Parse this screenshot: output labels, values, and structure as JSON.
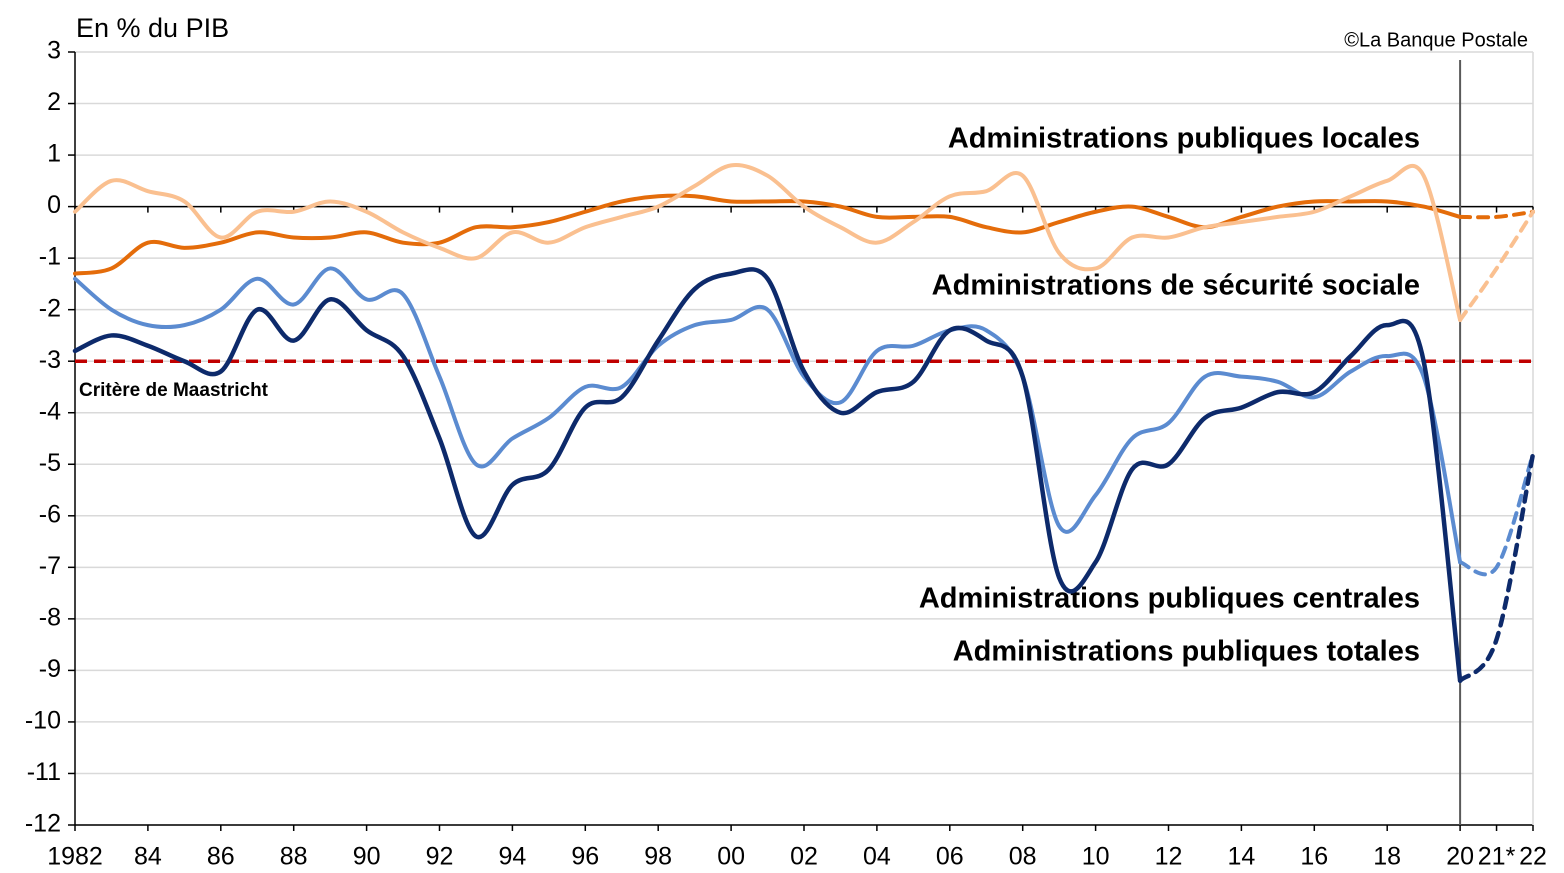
{
  "chart_data": {
    "type": "line",
    "y_label": "En % du PIB",
    "source": "©La Banque Postale",
    "x": [
      1982,
      1983,
      1984,
      1985,
      1986,
      1987,
      1988,
      1989,
      1990,
      1991,
      1992,
      1993,
      1994,
      1995,
      1996,
      1997,
      1998,
      1999,
      2000,
      2001,
      2002,
      2003,
      2004,
      2005,
      2006,
      2007,
      2008,
      2009,
      2010,
      2011,
      2012,
      2013,
      2014,
      2015,
      2016,
      2017,
      2018,
      2019,
      2020,
      2021,
      2022
    ],
    "forecast_from": 2020,
    "series": [
      {
        "name": "Administrations publiques locales",
        "color": "#e46c0a",
        "values": [
          -1.3,
          -1.2,
          -0.7,
          -0.8,
          -0.7,
          -0.5,
          -0.6,
          -0.6,
          -0.5,
          -0.7,
          -0.7,
          -0.4,
          -0.4,
          -0.3,
          -0.1,
          0.1,
          0.2,
          0.2,
          0.1,
          0.1,
          0.1,
          0.0,
          -0.2,
          -0.2,
          -0.2,
          -0.4,
          -0.5,
          -0.3,
          -0.1,
          0.0,
          -0.2,
          -0.4,
          -0.2,
          0.0,
          0.1,
          0.1,
          0.1,
          0.0,
          -0.2,
          -0.2,
          -0.1
        ]
      },
      {
        "name": "Administrations de sécurité sociale",
        "color": "#fac090",
        "values": [
          -0.1,
          0.5,
          0.3,
          0.1,
          -0.6,
          -0.1,
          -0.1,
          0.1,
          -0.1,
          -0.5,
          -0.8,
          -1.0,
          -0.5,
          -0.7,
          -0.4,
          -0.2,
          0.0,
          0.4,
          0.8,
          0.6,
          0.0,
          -0.4,
          -0.7,
          -0.3,
          0.2,
          0.3,
          0.6,
          -0.9,
          -1.2,
          -0.6,
          -0.6,
          -0.4,
          -0.3,
          -0.2,
          -0.1,
          0.2,
          0.5,
          0.6,
          -2.2,
          -1.2,
          -0.1
        ]
      },
      {
        "name": "Administrations publiques centrales",
        "color": "#5b8bd0",
        "values": [
          -1.4,
          -2.0,
          -2.3,
          -2.3,
          -2.0,
          -1.4,
          -1.9,
          -1.2,
          -1.8,
          -1.7,
          -3.3,
          -5.0,
          -4.5,
          -4.1,
          -3.5,
          -3.5,
          -2.7,
          -2.3,
          -2.2,
          -2.0,
          -3.3,
          -3.8,
          -2.8,
          -2.7,
          -2.4,
          -2.4,
          -3.3,
          -6.2,
          -5.6,
          -4.5,
          -4.2,
          -3.3,
          -3.3,
          -3.4,
          -3.7,
          -3.2,
          -2.9,
          -3.3,
          -6.9,
          -7.0,
          -4.8
        ]
      },
      {
        "name": "Administrations publiques totales",
        "color": "#0d2a6b",
        "values": [
          -2.8,
          -2.5,
          -2.7,
          -3.0,
          -3.2,
          -2.0,
          -2.6,
          -1.8,
          -2.4,
          -2.9,
          -4.5,
          -6.4,
          -5.4,
          -5.1,
          -3.9,
          -3.7,
          -2.6,
          -1.6,
          -1.3,
          -1.4,
          -3.2,
          -4.0,
          -3.6,
          -3.4,
          -2.4,
          -2.6,
          -3.3,
          -7.2,
          -6.9,
          -5.1,
          -5.0,
          -4.1,
          -3.9,
          -3.6,
          -3.6,
          -2.9,
          -2.3,
          -3.0,
          -9.2,
          -8.4,
          -4.8
        ]
      }
    ],
    "reference_line": {
      "value": -3,
      "label": "Critère de Maastricht",
      "color": "#c00000"
    },
    "xlim": [
      1982,
      2022
    ],
    "ylim": [
      -12,
      3
    ],
    "xticks": [
      1982,
      {
        "value": 1984,
        "label": "84"
      },
      {
        "value": 1986,
        "label": "86"
      },
      {
        "value": 1988,
        "label": "88"
      },
      {
        "value": 1990,
        "label": "90"
      },
      {
        "value": 1992,
        "label": "92"
      },
      {
        "value": 1994,
        "label": "94"
      },
      {
        "value": 1996,
        "label": "96"
      },
      {
        "value": 1998,
        "label": "98"
      },
      {
        "value": 2000,
        "label": "00"
      },
      {
        "value": 2002,
        "label": "02"
      },
      {
        "value": 2004,
        "label": "04"
      },
      {
        "value": 2006,
        "label": "06"
      },
      {
        "value": 2008,
        "label": "08"
      },
      {
        "value": 2010,
        "label": "10"
      },
      {
        "value": 2012,
        "label": "12"
      },
      {
        "value": 2014,
        "label": "14"
      },
      {
        "value": 2016,
        "label": "16"
      },
      {
        "value": 2018,
        "label": "18"
      },
      {
        "value": 2020,
        "label": "20"
      },
      {
        "value": 2021,
        "label": "21*"
      },
      {
        "value": 2022,
        "label": "22"
      }
    ],
    "yticks": [
      3,
      2,
      1,
      0,
      -1,
      -2,
      -3,
      -4,
      -5,
      -6,
      -7,
      -8,
      -9,
      -10,
      -11,
      -12
    ],
    "grid": true
  }
}
